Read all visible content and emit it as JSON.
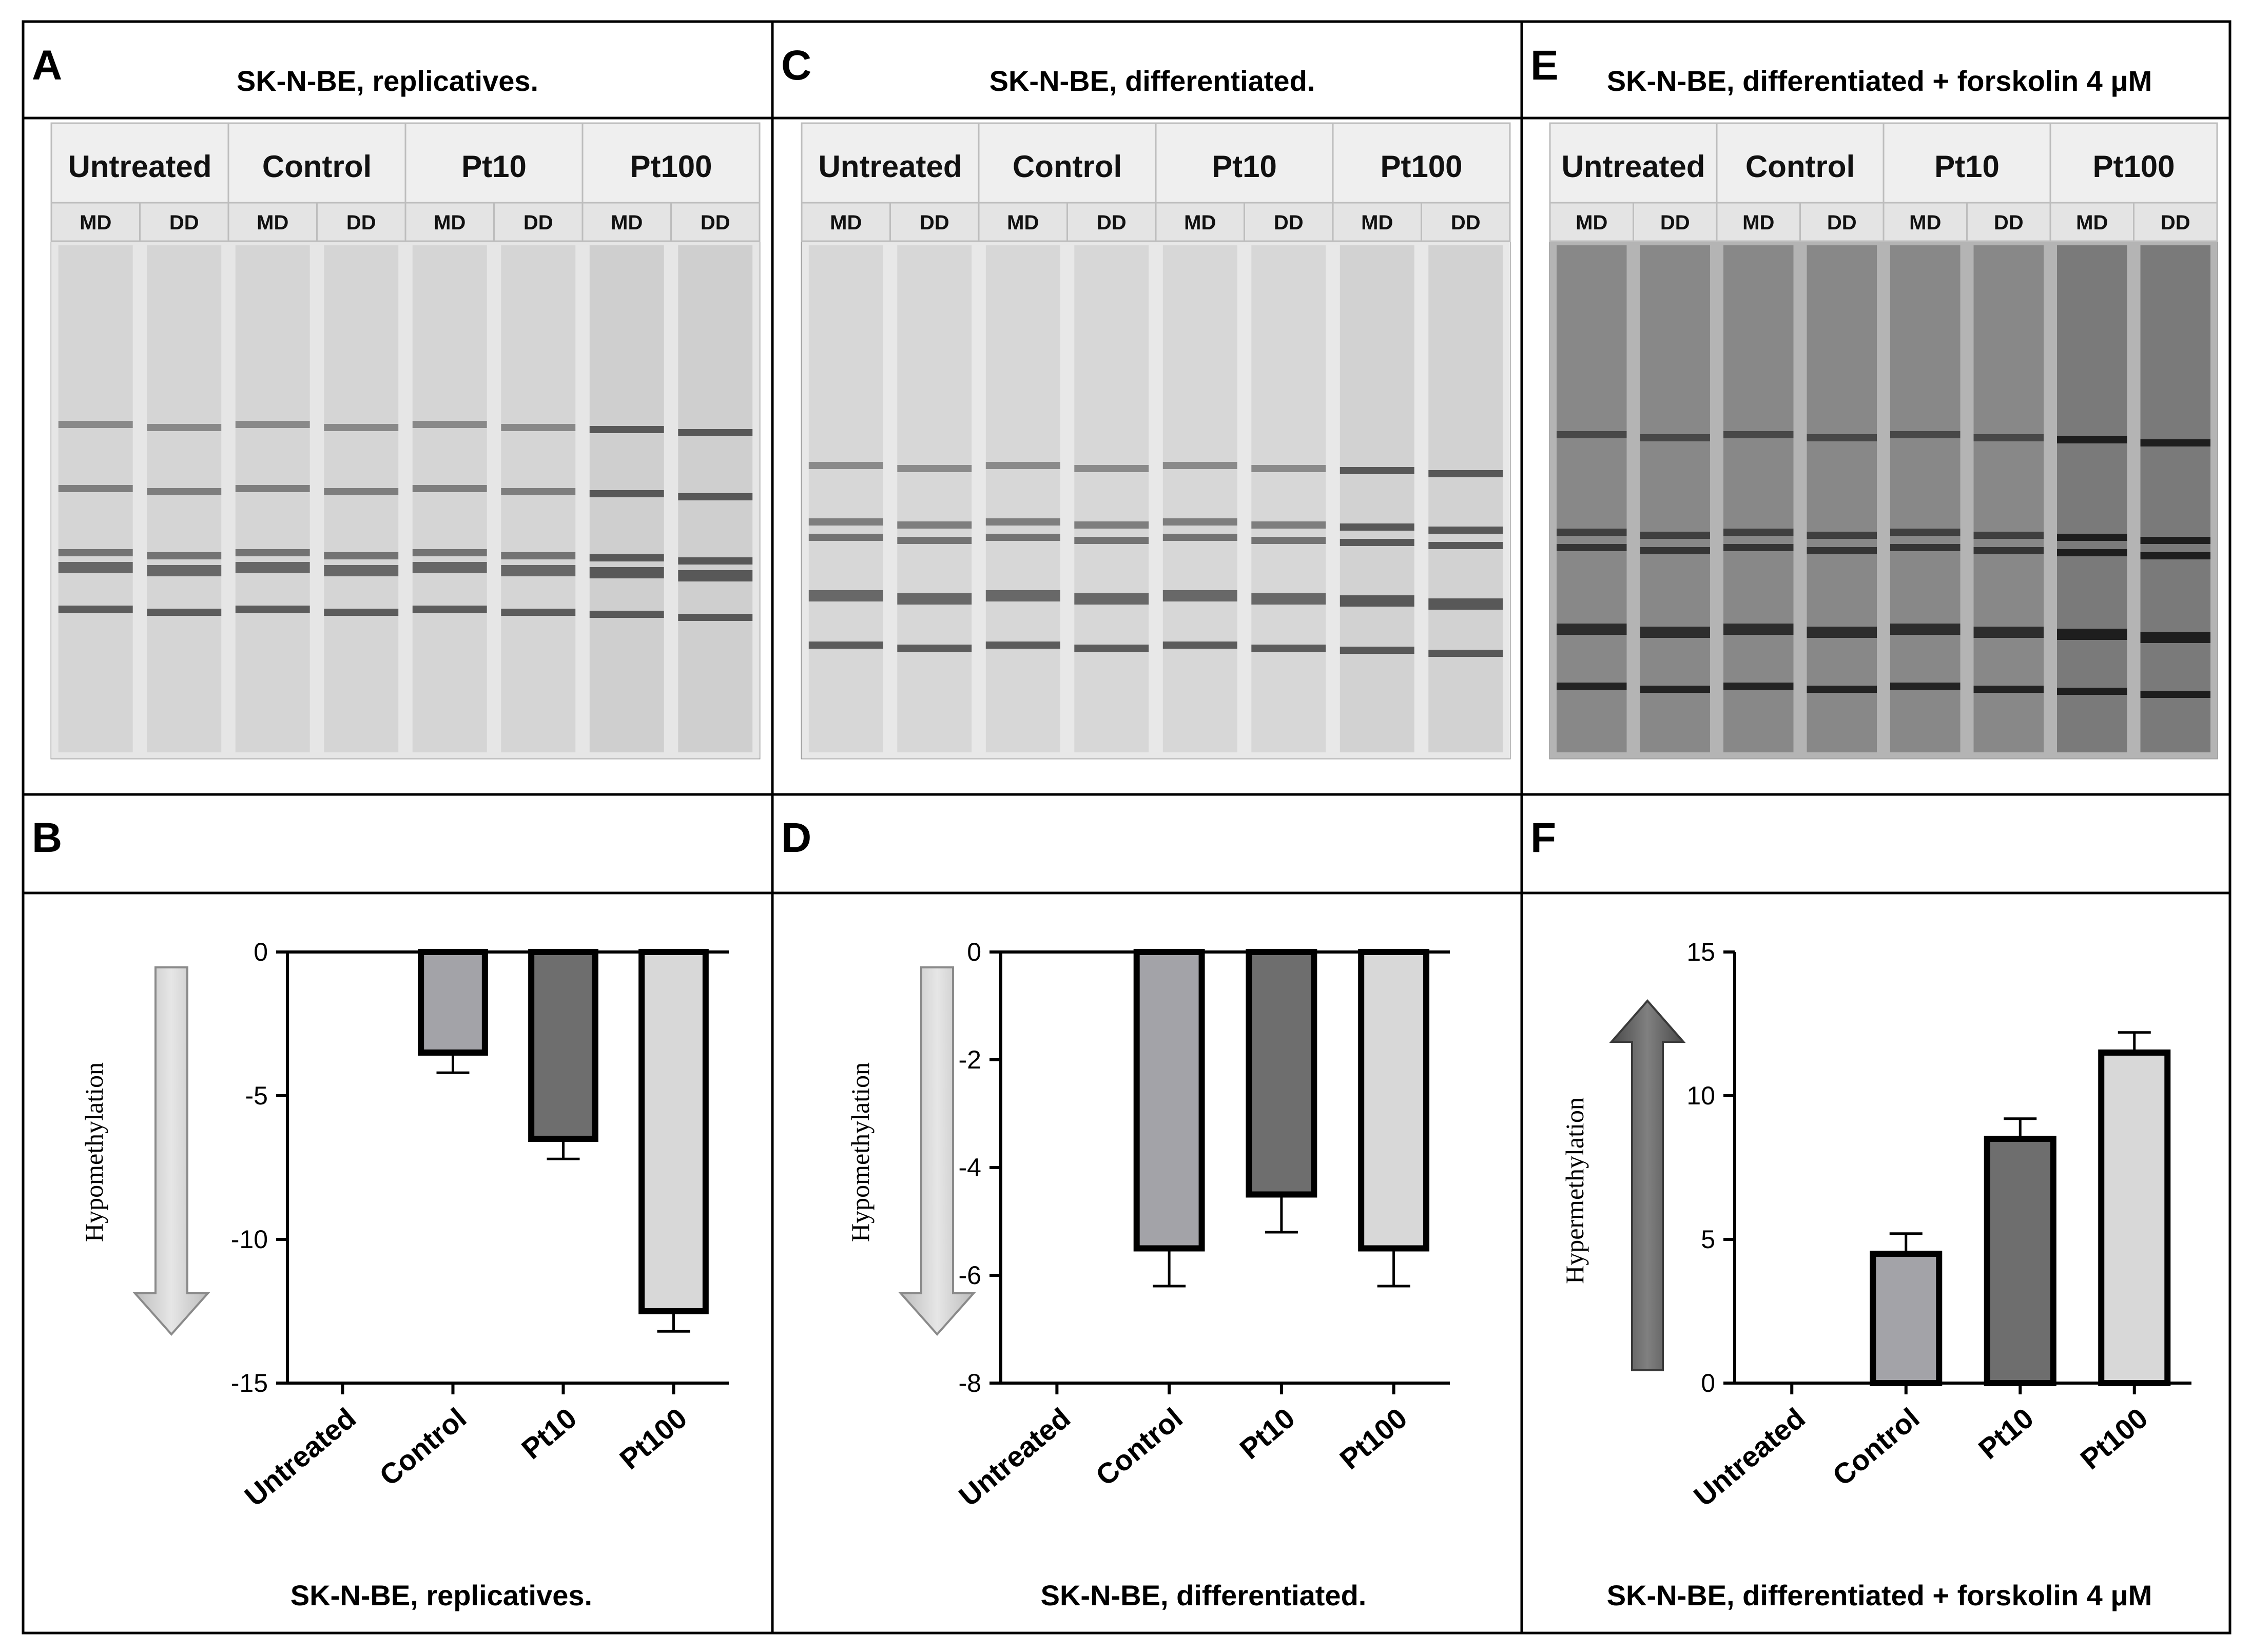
{
  "panels": {
    "A": {
      "letter": "A",
      "title": "SK-N-BE, replicatives."
    },
    "B": {
      "letter": "B",
      "caption": "SK-N-BE, replicatives."
    },
    "C": {
      "letter": "C",
      "title": "SK-N-BE, differentiated."
    },
    "D": {
      "letter": "D",
      "caption": "SK-N-BE, differentiated."
    },
    "E": {
      "letter": "E",
      "title": "SK-N-BE, differentiated + forskolin 4 μM"
    },
    "F": {
      "letter": "F",
      "caption": "SK-N-BE, differentiated + forskolin 4 μM"
    }
  },
  "gels": [
    {
      "panel": "A",
      "groups": [
        "Untreated",
        "Control",
        "Pt10",
        "Pt100"
      ],
      "sublanes": [
        "MD",
        "DD"
      ],
      "colors": {
        "background": "#e6e6e6",
        "lane": "#cfcfcf",
        "band": "#4a4a4a"
      }
    },
    {
      "panel": "C",
      "groups": [
        "Untreated",
        "Control",
        "Pt10",
        "Pt100"
      ],
      "sublanes": [
        "MD",
        "DD"
      ],
      "colors": {
        "background": "#e8e8e8",
        "lane": "#d2d2d2",
        "band": "#4a4a4a"
      }
    },
    {
      "panel": "E",
      "groups": [
        "Untreated",
        "Control",
        "Pt10",
        "Pt100"
      ],
      "sublanes": [
        "MD",
        "DD"
      ],
      "colors": {
        "background": "#b4b4b4",
        "lane": "#7a7a7a",
        "band": "#141414"
      }
    }
  ],
  "chart_data": [
    {
      "panel": "B",
      "type": "bar",
      "categories": [
        "Untreated",
        "Control",
        "Pt10",
        "Pt100"
      ],
      "values": [
        0,
        -3.5,
        -6.5,
        -12.5
      ],
      "errors": [
        0,
        0.7,
        0.7,
        0.7
      ],
      "ylim": [
        -15,
        0
      ],
      "yticks": [
        0,
        -5,
        -10,
        -15
      ],
      "ylabel": "Hypomethylation",
      "arrow": "down",
      "colors": [
        "#ffffff",
        "#a3a3a8",
        "#6e6e6e",
        "#d8d8d8"
      ]
    },
    {
      "panel": "D",
      "type": "bar",
      "categories": [
        "Untreated",
        "Control",
        "Pt10",
        "Pt100"
      ],
      "values": [
        0,
        -5.5,
        -4.5,
        -5.5
      ],
      "errors": [
        0,
        0.7,
        0.7,
        0.7
      ],
      "ylim": [
        -8,
        0
      ],
      "yticks": [
        0,
        -2,
        -4,
        -6,
        -8
      ],
      "ylabel": "Hypomethylation",
      "arrow": "down",
      "colors": [
        "#ffffff",
        "#a3a3a8",
        "#6e6e6e",
        "#d8d8d8"
      ]
    },
    {
      "panel": "F",
      "type": "bar",
      "categories": [
        "Untreated",
        "Control",
        "Pt10",
        "Pt100"
      ],
      "values": [
        0,
        4.5,
        8.5,
        11.5
      ],
      "errors": [
        0,
        0.7,
        0.7,
        0.7
      ],
      "ylim": [
        0,
        15
      ],
      "yticks": [
        0,
        5,
        10,
        15
      ],
      "ylabel": "Hypermethylation",
      "arrow": "up",
      "colors": [
        "#ffffff",
        "#a3a3a8",
        "#6e6e6e",
        "#d8d8d8"
      ]
    }
  ]
}
